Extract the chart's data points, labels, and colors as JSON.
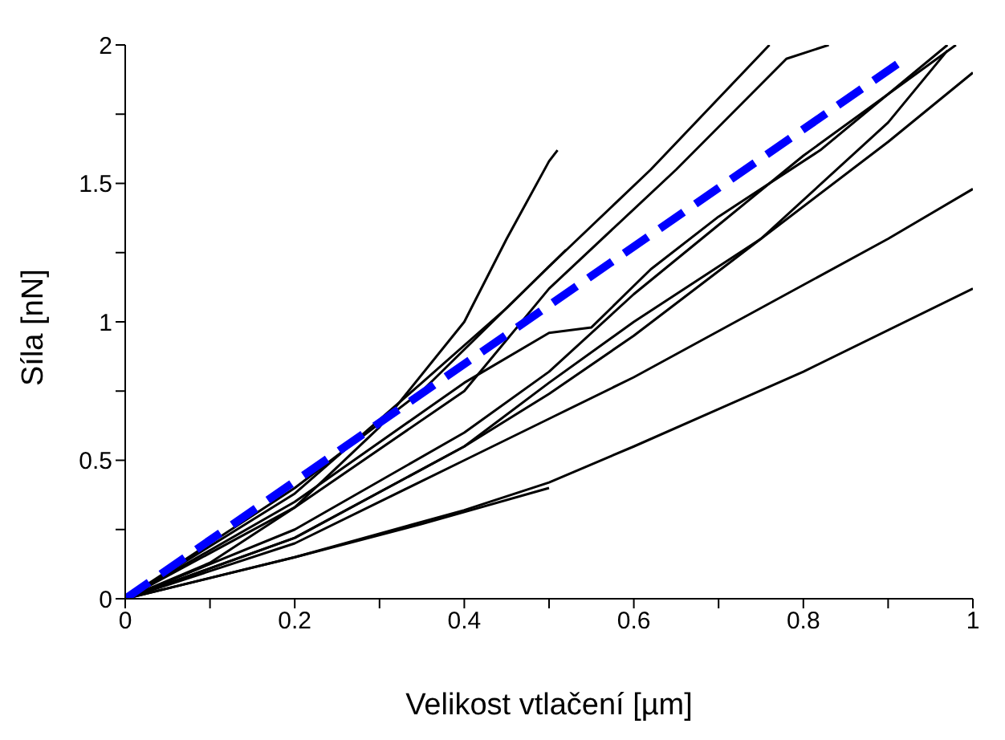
{
  "chart_data": {
    "type": "line",
    "xlabel": "Velikost vtlačení [µm]",
    "ylabel": "Síla [nN]",
    "xlim": [
      0,
      1
    ],
    "ylim": [
      0,
      2
    ],
    "xticks": [
      0,
      {
        "value": 0.1,
        "label": null
      },
      0.2,
      {
        "value": 0.3,
        "label": null
      },
      0.4,
      {
        "value": 0.5,
        "label": null
      },
      0.6,
      {
        "value": 0.7,
        "label": null
      },
      0.8,
      {
        "value": 0.9,
        "label": null
      },
      1
    ],
    "yticks": [
      0,
      {
        "value": 0.25,
        "label": null
      },
      0.5,
      {
        "value": 0.75,
        "label": null
      },
      1,
      {
        "value": 1.25,
        "label": null
      },
      1.5,
      {
        "value": 1.75,
        "label": null
      },
      2
    ],
    "marker": "none",
    "series": [
      {
        "color": "#000000",
        "x": [
          0,
          0.1,
          0.2,
          0.3,
          0.4,
          0.45,
          0.5,
          0.51
        ],
        "values": [
          0,
          0.13,
          0.33,
          0.62,
          1.0,
          1.3,
          1.58,
          1.62
        ]
      },
      {
        "color": "#000000",
        "x": [
          0,
          0.2,
          0.35,
          0.5,
          0.62,
          0.76
        ],
        "values": [
          0,
          0.4,
          0.75,
          1.2,
          1.55,
          2.0
        ]
      },
      {
        "color": "#000000",
        "x": [
          0,
          0.2,
          0.4,
          0.5,
          0.65,
          0.78,
          0.83
        ],
        "values": [
          0,
          0.33,
          0.75,
          1.12,
          1.55,
          1.95,
          2.0
        ]
      },
      {
        "color": "#000000",
        "x": [
          0,
          0.2,
          0.4,
          0.5,
          0.55,
          0.62,
          0.7,
          0.82,
          0.97
        ],
        "values": [
          0,
          0.35,
          0.78,
          0.96,
          0.98,
          1.19,
          1.38,
          1.62,
          2.0
        ]
      },
      {
        "color": "#000000",
        "x": [
          0,
          0.2,
          0.4,
          0.5,
          0.6,
          0.7,
          0.8,
          0.98
        ],
        "values": [
          0,
          0.25,
          0.6,
          0.82,
          1.1,
          1.35,
          1.6,
          2.0
        ]
      },
      {
        "color": "#000000",
        "x": [
          0,
          0.2,
          0.4,
          0.5,
          0.6,
          0.75,
          0.9,
          0.97
        ],
        "values": [
          0,
          0.22,
          0.55,
          0.78,
          1.0,
          1.3,
          1.72,
          1.98
        ]
      },
      {
        "color": "#000000",
        "x": [
          0,
          0.2,
          0.4,
          0.5,
          0.6,
          0.75,
          0.9,
          1.0
        ],
        "values": [
          0,
          0.22,
          0.55,
          0.74,
          0.95,
          1.3,
          1.65,
          1.9
        ]
      },
      {
        "color": "#000000",
        "x": [
          0,
          0.2,
          0.4,
          0.5,
          0.6,
          0.75,
          0.9,
          1.0
        ],
        "values": [
          0,
          0.2,
          0.5,
          0.65,
          0.8,
          1.05,
          1.3,
          1.48
        ]
      },
      {
        "color": "#000000",
        "x": [
          0,
          0.2,
          0.4,
          0.5,
          0.6,
          0.8,
          1.0
        ],
        "values": [
          0,
          0.15,
          0.32,
          0.42,
          0.55,
          0.82,
          1.12
        ]
      },
      {
        "color": "#000000",
        "x": [
          0,
          0.2,
          0.35,
          0.5
        ],
        "values": [
          0,
          0.15,
          0.27,
          0.4
        ]
      },
      {
        "color": "#000000",
        "x": [
          0,
          0.2,
          0.35,
          0.45,
          0.52
        ],
        "values": [
          0,
          0.38,
          0.78,
          1.05,
          1.26
        ]
      },
      {
        "color": "#0000ff",
        "line_style": "dashed",
        "x": [
          0,
          0.92
        ],
        "values": [
          0,
          1.95
        ]
      }
    ]
  }
}
